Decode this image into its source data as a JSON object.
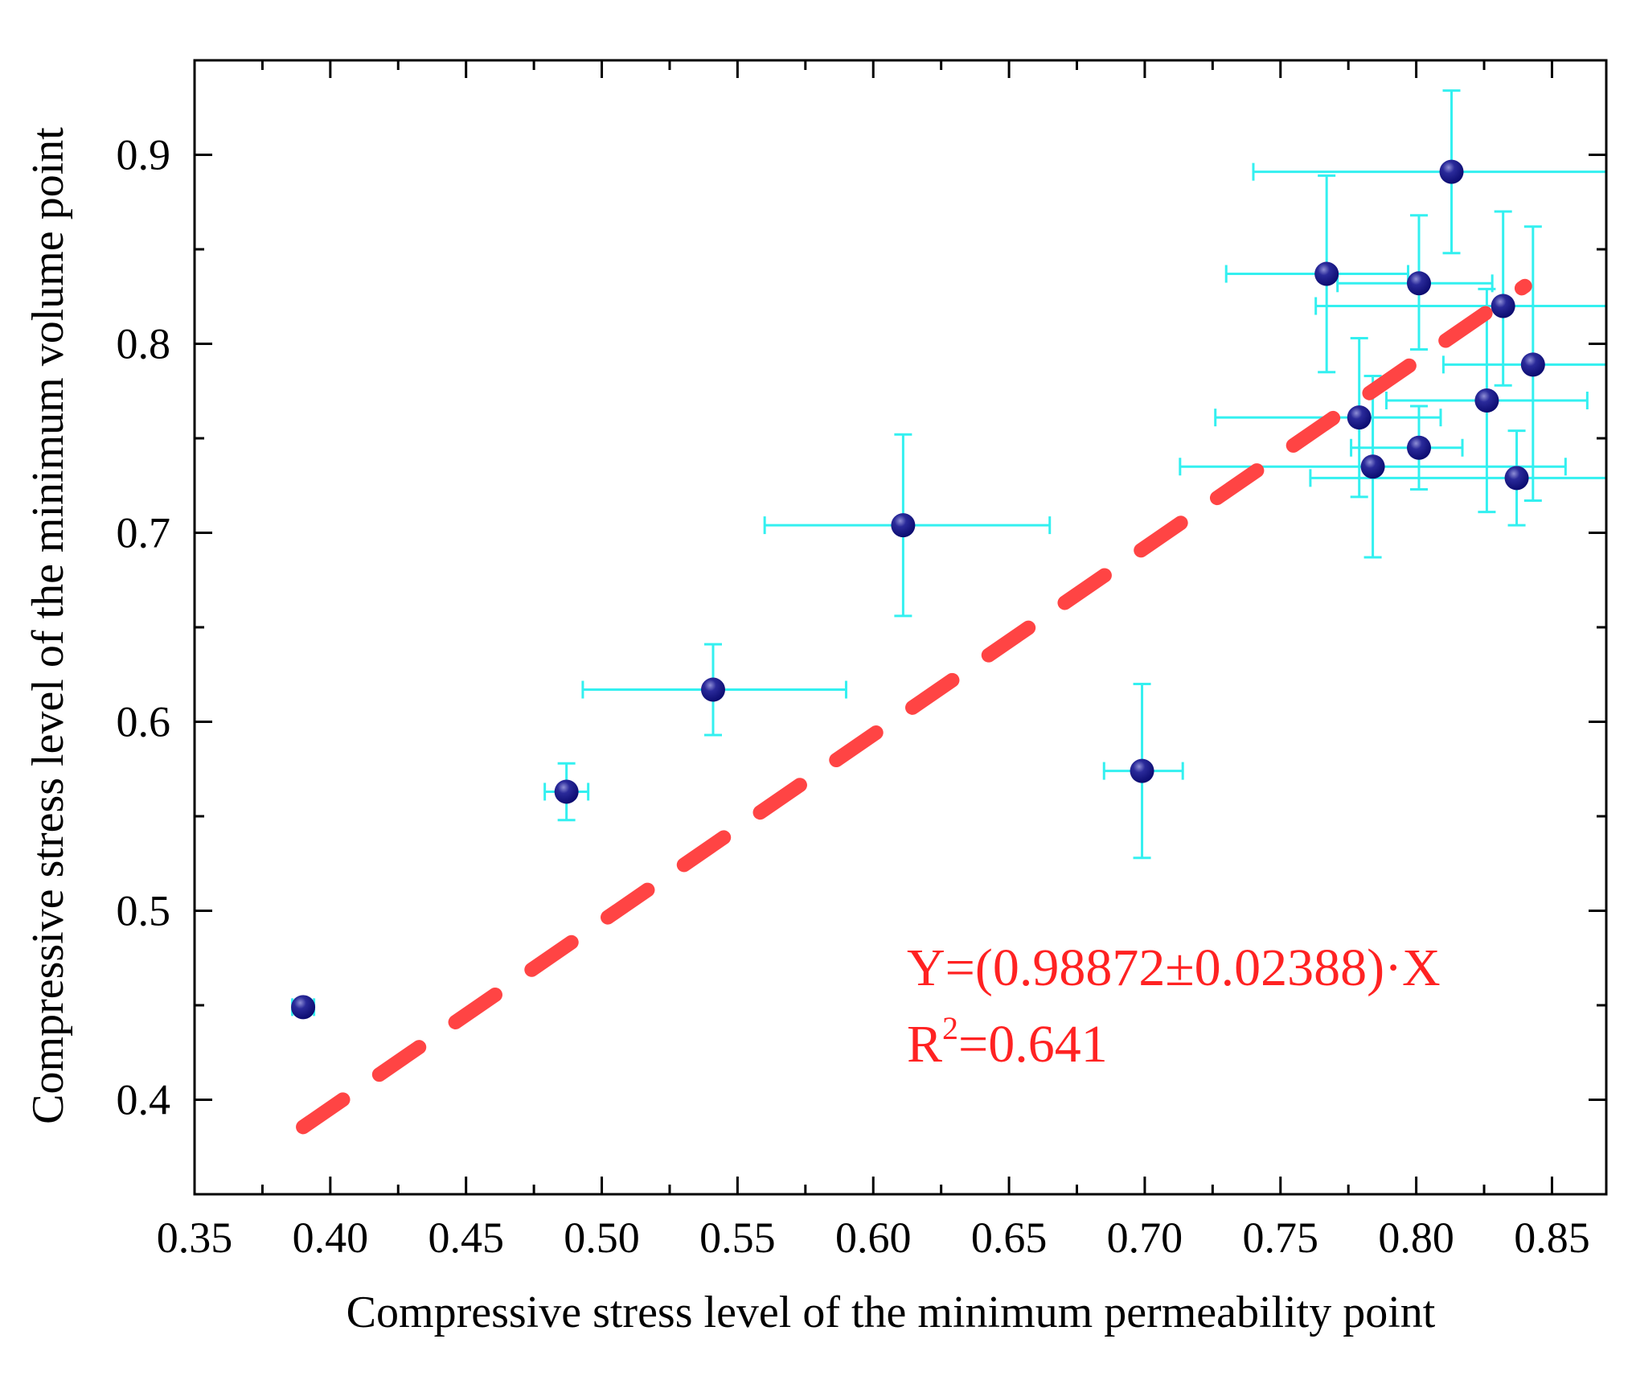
{
  "chart_data": {
    "type": "scatter",
    "title": "",
    "xlabel": "Compressive stress level of the minimum permeability point",
    "ylabel": "Compressive stress level of the minimum volume point",
    "xlim": [
      0.35,
      0.87
    ],
    "ylim": [
      0.35,
      0.95
    ],
    "grid": false,
    "x_ticks": [
      0.35,
      0.4,
      0.45,
      0.5,
      0.55,
      0.6,
      0.65,
      0.7,
      0.75,
      0.8,
      0.85
    ],
    "x_tick_labels": [
      "0.35",
      "0.40",
      "0.45",
      "0.50",
      "0.55",
      "0.60",
      "0.65",
      "0.70",
      "0.75",
      "0.80",
      "0.85"
    ],
    "y_ticks": [
      0.4,
      0.5,
      0.6,
      0.7,
      0.8,
      0.9
    ],
    "y_tick_labels": [
      "0.4",
      "0.5",
      "0.6",
      "0.7",
      "0.8",
      "0.9"
    ],
    "points": [
      {
        "x": 0.39,
        "y": 0.449,
        "xerr": [
          0.004,
          0.004
        ],
        "yerr": [
          0.004,
          0.004
        ]
      },
      {
        "x": 0.487,
        "y": 0.563,
        "xerr": [
          0.008,
          0.008
        ],
        "yerr": [
          0.015,
          0.015
        ]
      },
      {
        "x": 0.541,
        "y": 0.617,
        "xerr": [
          0.048,
          0.049
        ],
        "yerr": [
          0.024,
          0.024
        ]
      },
      {
        "x": 0.611,
        "y": 0.704,
        "xerr": [
          0.051,
          0.054
        ],
        "yerr": [
          0.048,
          0.048
        ]
      },
      {
        "x": 0.699,
        "y": 0.574,
        "xerr": [
          0.014,
          0.015
        ],
        "yerr": [
          0.046,
          0.046
        ]
      },
      {
        "x": 0.767,
        "y": 0.837,
        "xerr": [
          0.037,
          0.03
        ],
        "yerr": [
          0.052,
          0.052
        ]
      },
      {
        "x": 0.813,
        "y": 0.891,
        "xerr": [
          0.073,
          0.057
        ],
        "yerr": [
          0.043,
          0.043
        ]
      },
      {
        "x": 0.801,
        "y": 0.832,
        "xerr": [
          0.03,
          0.027
        ],
        "yerr": [
          0.035,
          0.036
        ]
      },
      {
        "x": 0.832,
        "y": 0.82,
        "xerr": [
          0.069,
          0.038
        ],
        "yerr": [
          0.042,
          0.05
        ]
      },
      {
        "x": 0.843,
        "y": 0.789,
        "xerr": [
          0.033,
          0.027
        ],
        "yerr": [
          0.072,
          0.073
        ]
      },
      {
        "x": 0.779,
        "y": 0.761,
        "xerr": [
          0.053,
          0.03
        ],
        "yerr": [
          0.042,
          0.042
        ]
      },
      {
        "x": 0.826,
        "y": 0.77,
        "xerr": [
          0.037,
          0.037
        ],
        "yerr": [
          0.059,
          0.059
        ]
      },
      {
        "x": 0.801,
        "y": 0.745,
        "xerr": [
          0.025,
          0.016
        ],
        "yerr": [
          0.022,
          0.022
        ]
      },
      {
        "x": 0.784,
        "y": 0.735,
        "xerr": [
          0.071,
          0.071
        ],
        "yerr": [
          0.048,
          0.048
        ]
      },
      {
        "x": 0.837,
        "y": 0.729,
        "xerr": [
          0.076,
          0.034
        ],
        "yerr": [
          0.025,
          0.025
        ]
      }
    ],
    "fit": {
      "slope": 0.98872,
      "x_range": [
        0.39,
        0.84
      ]
    },
    "annotations": {
      "equation": "Y=(0.98872±0.02388)·X",
      "r2_prefix": "R",
      "r2_sup": "2",
      "r2_value": "=0.641"
    },
    "colors": {
      "marker": "#0a0a6e",
      "marker_highlight": "#8f8fd6",
      "error_bar": "#33f0f0",
      "fit_line": "#ff4444",
      "annotation": "#ff2222"
    }
  }
}
